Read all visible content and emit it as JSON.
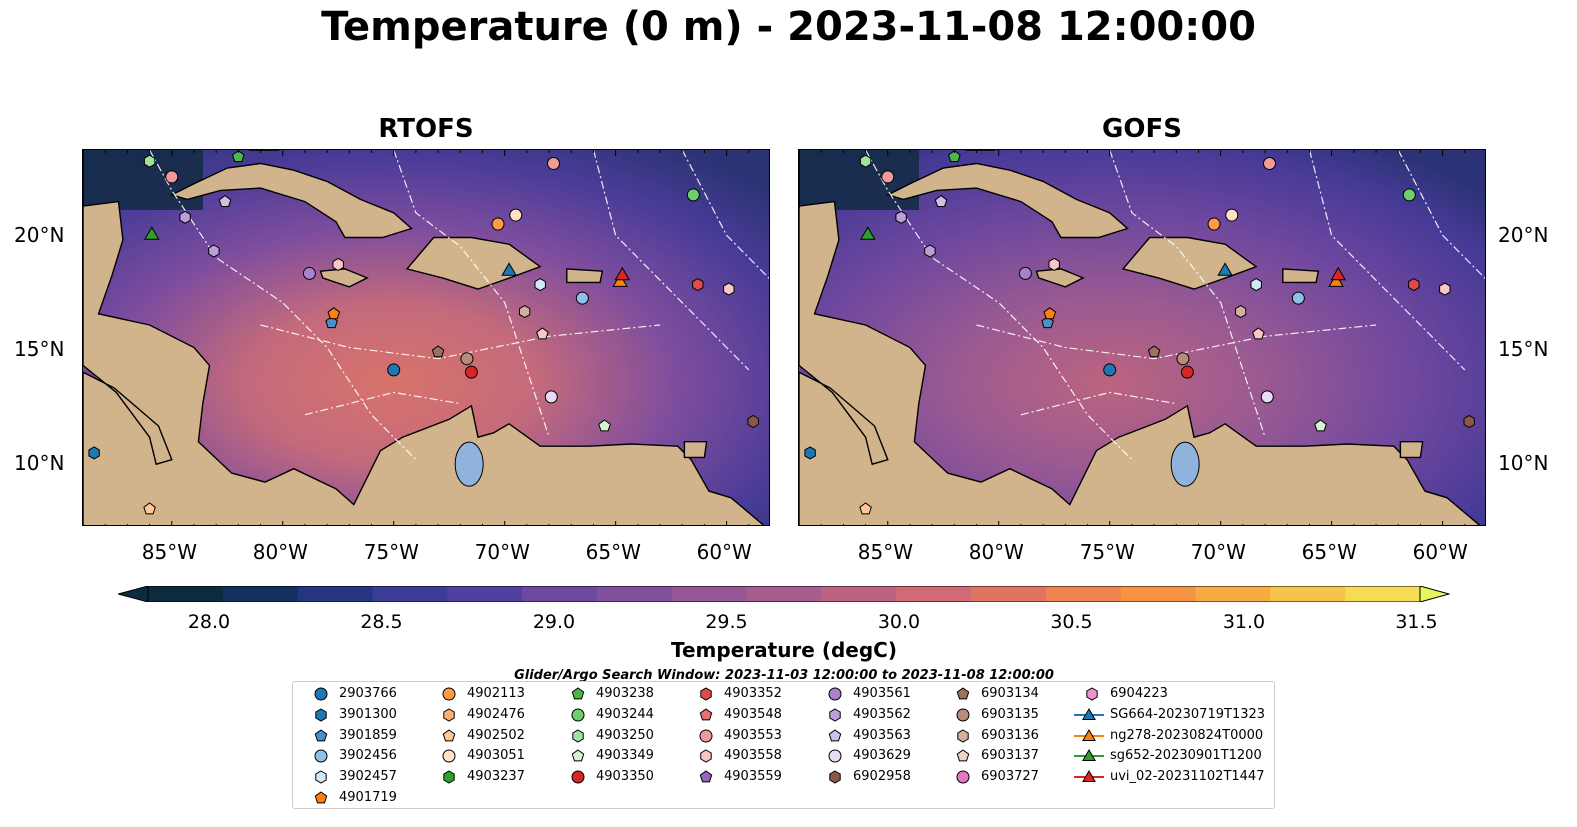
{
  "figure": {
    "title": "Temperature (0 m) - 2023-11-08 12:00:00",
    "panels": [
      {
        "title": "RTOFS"
      },
      {
        "title": "GOFS"
      }
    ],
    "lon_ticks": [
      "85°W",
      "80°W",
      "75°W",
      "70°W",
      "65°W",
      "60°W"
    ],
    "lat_ticks": [
      "20°N",
      "15°N",
      "10°N"
    ]
  },
  "colorbar": {
    "label": "Temperature (degC)",
    "ticks": [
      "28.0",
      "28.5",
      "29.0",
      "29.5",
      "30.0",
      "30.5",
      "31.0",
      "31.5"
    ],
    "colors": [
      "#0d2b3e",
      "#14305e",
      "#26357f",
      "#3b3c96",
      "#51409f",
      "#6b4aa0",
      "#80509c",
      "#955895",
      "#a75d8c",
      "#bc6381",
      "#d06a74",
      "#df7461",
      "#ee8250",
      "#f69444",
      "#f8ab41",
      "#f7c44a",
      "#f5dc54"
    ],
    "extend_color": "#e8f55e",
    "land_color": "#d2b48c",
    "lake_color": "#8fb3dc"
  },
  "search_window": "Glider/Argo Search Window: 2023-11-03 12:00:00 to 2023-11-08 12:00:00",
  "legend": [
    {
      "label": "2903766",
      "marker": "circle",
      "color": "#1f77b4"
    },
    {
      "label": "3901300",
      "marker": "hexagon",
      "color": "#1f77b4"
    },
    {
      "label": "3901859",
      "marker": "pentagon",
      "color": "#4a8fc8"
    },
    {
      "label": "3902456",
      "marker": "circle",
      "color": "#8fc0e6"
    },
    {
      "label": "3902457",
      "marker": "hexagon",
      "color": "#cfe8f8"
    },
    {
      "label": "4901719",
      "marker": "pentagon",
      "color": "#ff7f0e"
    },
    {
      "label": "4902113",
      "marker": "circle",
      "color": "#ff9b45"
    },
    {
      "label": "4902476",
      "marker": "hexagon",
      "color": "#ffb070"
    },
    {
      "label": "4902502",
      "marker": "pentagon",
      "color": "#ffc898"
    },
    {
      "label": "4903051",
      "marker": "circle",
      "color": "#ffe2c4"
    },
    {
      "label": "4903237",
      "marker": "hexagon",
      "color": "#2ca02c"
    },
    {
      "label": "4903238",
      "marker": "pentagon",
      "color": "#4bb84b"
    },
    {
      "label": "4903244",
      "marker": "circle",
      "color": "#6fcf6f"
    },
    {
      "label": "4903250",
      "marker": "hexagon",
      "color": "#9de39d"
    },
    {
      "label": "4903349",
      "marker": "pentagon",
      "color": "#d4f5d4"
    },
    {
      "label": "4903350",
      "marker": "circle",
      "color": "#d62728"
    },
    {
      "label": "4903352",
      "marker": "hexagon",
      "color": "#e04a4a"
    },
    {
      "label": "4903548",
      "marker": "pentagon",
      "color": "#ea6f6f"
    },
    {
      "label": "4903553",
      "marker": "circle",
      "color": "#f29a9a"
    },
    {
      "label": "4903558",
      "marker": "hexagon",
      "color": "#f8c8c8"
    },
    {
      "label": "4903559",
      "marker": "pentagon",
      "color": "#9467bd"
    },
    {
      "label": "4903561",
      "marker": "circle",
      "color": "#a883cc"
    },
    {
      "label": "4903562",
      "marker": "hexagon",
      "color": "#bc9fda"
    },
    {
      "label": "4903563",
      "marker": "pentagon",
      "color": "#d2bfe8"
    },
    {
      "label": "4903629",
      "marker": "circle",
      "color": "#e8dcf5"
    },
    {
      "label": "6902958",
      "marker": "hexagon",
      "color": "#8c564b"
    },
    {
      "label": "6903134",
      "marker": "pentagon",
      "color": "#a0705f"
    },
    {
      "label": "6903135",
      "marker": "circle",
      "color": "#b88b7a"
    },
    {
      "label": "6903136",
      "marker": "hexagon",
      "color": "#d4ae9e"
    },
    {
      "label": "6903137",
      "marker": "pentagon",
      "color": "#efd4c8"
    },
    {
      "label": "6903727",
      "marker": "circle",
      "color": "#e377c2"
    },
    {
      "label": "6904223",
      "marker": "hexagon",
      "color": "#ea94d0"
    },
    {
      "label": "SG664-20230719T1323",
      "marker": "triangle-line",
      "color": "#1f77b4"
    },
    {
      "label": "ng278-20230824T0000",
      "marker": "triangle-line",
      "color": "#ff7f0e"
    },
    {
      "label": "sg652-20230901T1200",
      "marker": "triangle-line",
      "color": "#2ca02c"
    },
    {
      "label": "uvi_02-20231102T1447",
      "marker": "triangle-line",
      "color": "#d62728"
    }
  ],
  "map_points": [
    {
      "marker": "circle",
      "color": "#1f77b4",
      "lon": -75.0,
      "lat": 14.0
    },
    {
      "marker": "hexagon",
      "color": "#1f77b4",
      "lon": -88.5,
      "lat": 10.3
    },
    {
      "marker": "pentagon",
      "color": "#4a8fc8",
      "lon": -77.8,
      "lat": 16.1
    },
    {
      "marker": "circle",
      "color": "#8fc0e6",
      "lon": -66.5,
      "lat": 17.2
    },
    {
      "marker": "hexagon",
      "color": "#cfe8f8",
      "lon": -68.4,
      "lat": 17.8
    },
    {
      "marker": "pentagon",
      "color": "#ff7f0e",
      "lon": -77.7,
      "lat": 16.5
    },
    {
      "marker": "circle",
      "color": "#ff9b45",
      "lon": -70.3,
      "lat": 20.5
    },
    {
      "marker": "pentagon",
      "color": "#ffc898",
      "lon": -86.0,
      "lat": 7.8
    },
    {
      "marker": "circle",
      "color": "#ffe2c4",
      "lon": -69.5,
      "lat": 20.9
    },
    {
      "marker": "pentagon",
      "color": "#4bb84b",
      "lon": -82.0,
      "lat": 23.5
    },
    {
      "marker": "circle",
      "color": "#6fcf6f",
      "lon": -61.5,
      "lat": 21.8
    },
    {
      "marker": "hexagon",
      "color": "#9de39d",
      "lon": -86.0,
      "lat": 23.3
    },
    {
      "marker": "pentagon",
      "color": "#d4f5d4",
      "lon": -65.5,
      "lat": 11.5
    },
    {
      "marker": "circle",
      "color": "#d62728",
      "lon": -71.5,
      "lat": 13.9
    },
    {
      "marker": "hexagon",
      "color": "#e04a4a",
      "lon": -61.3,
      "lat": 17.8
    },
    {
      "marker": "circle",
      "color": "#f29a9a",
      "lon": -85.0,
      "lat": 22.6
    },
    {
      "marker": "circle",
      "color": "#f29a9a",
      "lon": -67.8,
      "lat": 23.2
    },
    {
      "marker": "hexagon",
      "color": "#f8c8c8",
      "lon": -77.5,
      "lat": 18.7
    },
    {
      "marker": "hexagon",
      "color": "#f8c8c8",
      "lon": -59.9,
      "lat": 17.6
    },
    {
      "marker": "pentagon",
      "color": "#f8c8c8",
      "lon": -68.3,
      "lat": 15.6
    },
    {
      "marker": "circle",
      "color": "#a883cc",
      "lon": -78.8,
      "lat": 18.3
    },
    {
      "marker": "hexagon",
      "color": "#bc9fda",
      "lon": -84.4,
      "lat": 20.8
    },
    {
      "marker": "pentagon",
      "color": "#d2bfe8",
      "lon": -82.6,
      "lat": 21.5
    },
    {
      "marker": "circle",
      "color": "#e8dcf5",
      "lon": -67.9,
      "lat": 12.8
    },
    {
      "marker": "hexagon",
      "color": "#8c564b",
      "lon": -58.8,
      "lat": 11.7
    },
    {
      "marker": "pentagon",
      "color": "#a0705f",
      "lon": -73.0,
      "lat": 14.8
    },
    {
      "marker": "circle",
      "color": "#b88b7a",
      "lon": -71.7,
      "lat": 14.5
    },
    {
      "marker": "hexagon",
      "color": "#d4ae9e",
      "lon": -69.1,
      "lat": 16.6
    },
    {
      "marker": "hexagon",
      "color": "#bc9fda",
      "lon": -83.1,
      "lat": 19.3
    },
    {
      "marker": "triangle",
      "color": "#1f77b4",
      "lon": -69.8,
      "lat": 18.4
    },
    {
      "marker": "triangle",
      "color": "#ff7f0e",
      "lon": -64.8,
      "lat": 17.9
    },
    {
      "marker": "triangle",
      "color": "#2ca02c",
      "lon": -85.9,
      "lat": 20.0
    },
    {
      "marker": "triangle",
      "color": "#d62728",
      "lon": -64.7,
      "lat": 18.2
    }
  ]
}
